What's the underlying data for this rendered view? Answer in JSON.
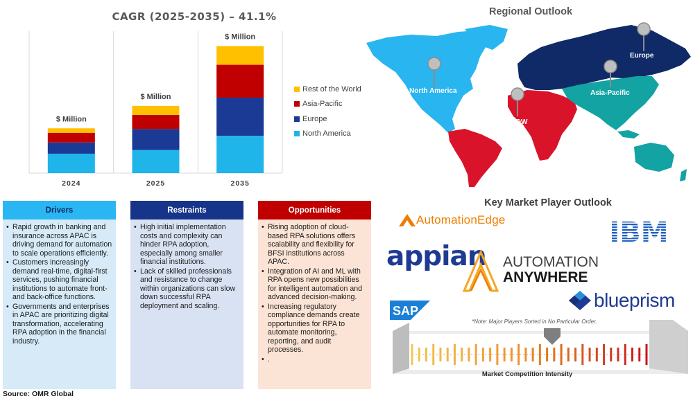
{
  "chart_data": {
    "type": "bar",
    "title": "CAGR (2025-2035) – 41.1%",
    "categories": [
      "2024",
      "2025",
      "2035"
    ],
    "bar_labels": [
      "$ Million",
      "$ Million",
      "$ Million"
    ],
    "series": [
      {
        "name": "North America",
        "color": "#1fb5ea",
        "values": [
          26,
          31,
          50
        ]
      },
      {
        "name": "Europe",
        "color": "#1a3a96",
        "values": [
          15,
          28,
          51
        ]
      },
      {
        "name": "Asia-Pacific",
        "color": "#c00000",
        "values": [
          13,
          19,
          44
        ]
      },
      {
        "name": "Rest of the World",
        "color": "#ffc000",
        "values": [
          6,
          12,
          25
        ]
      }
    ],
    "ylim": [
      0,
      190
    ],
    "legend_position": "right",
    "grid": "vertical"
  },
  "map": {
    "title": "Regional Outlook",
    "regions": [
      {
        "name": "North America",
        "color": "#29b5f0"
      },
      {
        "name": "Europe",
        "color": "#0f2a66"
      },
      {
        "name": "Asia-Pacific",
        "color": "#13a3a3"
      },
      {
        "name": "ROW",
        "color": "#d9142a"
      }
    ]
  },
  "panels": {
    "drivers": {
      "title": "Drivers",
      "items": [
        "Rapid growth in banking and insurance across APAC is driving demand for automation to scale operations efficiently.",
        "Customers increasingly demand real-time, digital-first services, pushing financial institutions to automate front- and back-office functions.",
        "Governments and enterprises in APAC are prioritizing digital transformation, accelerating RPA adoption in the financial industry."
      ]
    },
    "restraints": {
      "title": "Restraints",
      "items": [
        "High initial implementation costs and complexity can hinder RPA adoption, especially among smaller financial institutions.",
        "Lack of skilled professionals and resistance to change within organizations can slow down successful RPA deployment and scaling."
      ]
    },
    "opportunities": {
      "title": "Opportunities",
      "items": [
        "Rising adoption of cloud-based RPA solutions offers scalability and flexibility for BFSI institutions across APAC.",
        "Integration of AI and ML with RPA opens new possibilities for intelligent automation and advanced decision-making.",
        "Increasing regulatory compliance demands create opportunities for RPA to automate monitoring, reporting, and audit processes.",
        "."
      ]
    }
  },
  "source": "Source: OMR Global",
  "players": {
    "title": "Key Market Player Outlook",
    "logos": {
      "automationedge": "AutomationEdge",
      "ibm": "IBM",
      "appian": "appian",
      "aa_line1": "AUTOMATION",
      "aa_line2": "ANYWHERE",
      "sap": "SAP",
      "blueprism": "blueprism"
    },
    "note": "*Note: Major Players Sorted in No Particular Order.",
    "intensity_label": "Market Competition Intensity"
  }
}
